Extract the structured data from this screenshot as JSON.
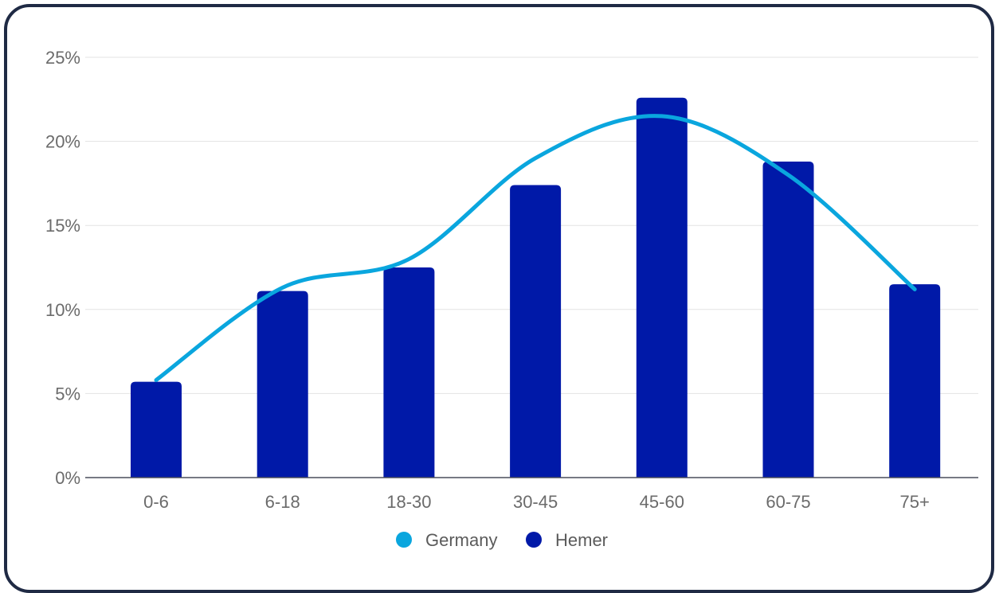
{
  "chart_data": {
    "type": "bar",
    "categories": [
      "0-6",
      "6-18",
      "18-30",
      "30-45",
      "45-60",
      "60-75",
      "75+"
    ],
    "series": [
      {
        "name": "Hemer",
        "kind": "bar",
        "color": "#0019a8",
        "values": [
          5.7,
          11.1,
          12.5,
          17.4,
          22.6,
          18.8,
          11.5
        ]
      },
      {
        "name": "Germany",
        "kind": "line",
        "color": "#0aa6de",
        "values": [
          5.8,
          11.3,
          13.0,
          19.0,
          21.5,
          18.0,
          11.2
        ]
      }
    ],
    "y_ticks": [
      "0%",
      "5%",
      "10%",
      "15%",
      "20%",
      "25%"
    ],
    "ylim": [
      0,
      25
    ],
    "grid": true,
    "legend_position": "bottom-center",
    "legend": [
      "Germany",
      "Hemer"
    ]
  }
}
